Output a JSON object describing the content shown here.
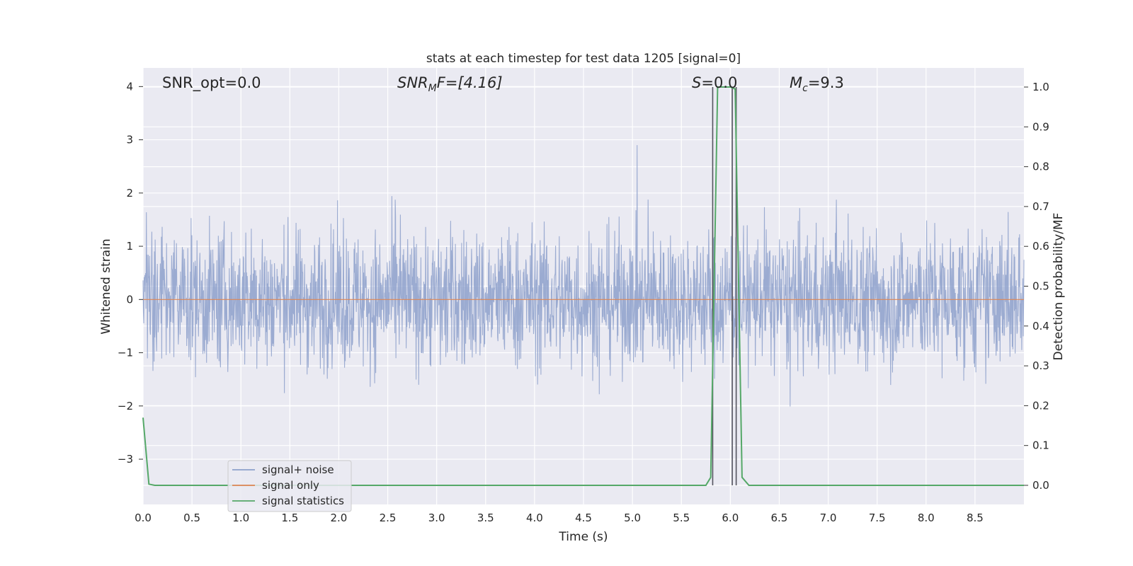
{
  "chart_data": {
    "type": "line",
    "title": "stats at each timestep for test data 1205 [signal=0]",
    "xlabel": "Time (s)",
    "ylabel_left": "Whitened strain",
    "ylabel_right": "Detection probability/MF",
    "xlim": [
      0.0,
      9.0
    ],
    "ylim_left": [
      -3.85,
      4.35
    ],
    "ylim_right": [
      -0.048,
      1.048
    ],
    "x_ticks": [
      "0.0",
      "0.5",
      "1.0",
      "1.5",
      "2.0",
      "2.5",
      "3.0",
      "3.5",
      "4.0",
      "4.5",
      "5.0",
      "5.5",
      "6.0",
      "6.5",
      "7.0",
      "7.5",
      "8.0",
      "8.5"
    ],
    "y_ticks_left": [
      "4",
      "3",
      "2",
      "1",
      "0",
      "−1",
      "−2",
      "−3"
    ],
    "y_ticks_right": [
      "1.0",
      "0.9",
      "0.8",
      "0.7",
      "0.6",
      "0.5",
      "0.4",
      "0.3",
      "0.2",
      "0.1",
      "0.0"
    ],
    "grid": true,
    "legend_position": "lower-left",
    "annotations": {
      "snr_opt": "SNR_opt=0.0",
      "snr_mf_main": "SNR",
      "snr_mf_sub": "M",
      "snr_mf_tail": "F=[4.16]",
      "s_italic": "S",
      "s_value": "=0.0",
      "mc_main": "M",
      "mc_sub": "c",
      "mc_value": "=9.3"
    },
    "series": [
      {
        "name": "signal+ noise",
        "axis": "left",
        "color": "#8da0cb",
        "note_values": "dense noise between about -3.5 and 3.6, amplitude envelope roughly ±2"
      },
      {
        "name": "signal only",
        "axis": "left",
        "color": "#dd8452",
        "x": [
          0.0,
          9.0
        ],
        "y": [
          0.0,
          0.0
        ]
      },
      {
        "name": "signal statistics",
        "axis": "right",
        "color": "#55a868",
        "x": [
          0.0,
          0.06,
          0.12,
          5.75,
          5.8,
          5.87,
          5.93,
          6.0,
          6.05,
          6.12,
          6.19,
          9.0
        ],
        "y": [
          0.17,
          0.003,
          0.0,
          0.0,
          0.02,
          1.0,
          1.0,
          1.0,
          0.995,
          0.02,
          0.0,
          0.0
        ]
      }
    ],
    "vertical_markers": {
      "color": "#55555f",
      "x": [
        5.82,
        6.06,
        6.02
      ]
    }
  }
}
